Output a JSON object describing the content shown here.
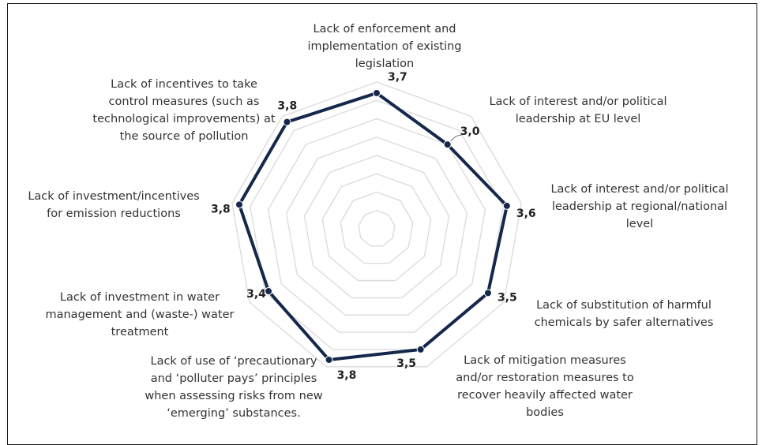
{
  "chart_data": {
    "type": "radar",
    "categories": [
      [
        "Lack of enforcement and",
        "implementation of existing",
        "legislation"
      ],
      [
        "Lack of interest and/or political",
        "leadership at EU level"
      ],
      [
        "Lack of interest and/or political",
        "leadership at regional/national",
        "level"
      ],
      [
        "Lack of substitution of harmful",
        "chemicals by safer alternatives"
      ],
      [
        "Lack of mitigation measures",
        "and/or restoration measures to",
        "recover heavily affected water",
        "bodies"
      ],
      [
        "Lack of use of ‘precautionary",
        "and ‘polluter pays’ principles",
        "when assessing risks from new",
        "‘emerging’ substances."
      ],
      [
        "Lack of investment in water",
        "management and (waste-) water",
        "treatment"
      ],
      [
        "Lack of investment/incentives",
        "for emission reductions"
      ],
      [
        "Lack of incentives to take",
        "control measures (such as",
        "technological improvements) at",
        "the source of pollution"
      ]
    ],
    "values": [
      3.7,
      3.0,
      3.6,
      3.5,
      3.5,
      3.8,
      3.4,
      3.8,
      3.8
    ],
    "value_labels": [
      "3,7",
      "3,0",
      "3,6",
      "3,5",
      "3,5",
      "3,8",
      "3,4",
      "3,8",
      "3,8"
    ],
    "grid": true,
    "series_color": "#15284b",
    "grid_color": "#dcdcdc"
  }
}
